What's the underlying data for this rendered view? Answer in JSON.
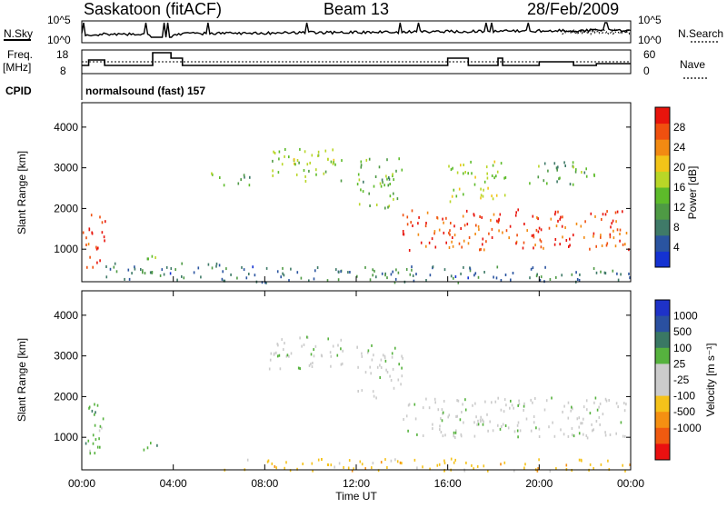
{
  "header": {
    "site": "Saskatoon (fitACF)",
    "beam": "Beam 13",
    "date": "28/Feb/2009"
  },
  "noise_panel": {
    "left_label": "N.Sky",
    "right_label": "N.Search",
    "y_top_label": "10^5",
    "y_bottom_label": "10^0",
    "right_top_label": "10^5",
    "right_bottom_label": "10^0"
  },
  "freq_panel": {
    "left_label_line1": "Freq.",
    "left_label_line2": "[MHz]",
    "left_top_tick": "18",
    "left_bottom_tick": "8",
    "right_label": "Nave",
    "right_top_tick": "60",
    "right_bottom_tick": "0"
  },
  "cpid_panel": {
    "label": "CPID",
    "value": "normalsound (fast) 157"
  },
  "colors": {
    "power_scale": [
      "#1432d2",
      "#2a54a0",
      "#3f7a68",
      "#4e9a44",
      "#5dbb2a",
      "#b9d627",
      "#f2c418",
      "#f28a12",
      "#f0500f",
      "#e8140c"
    ],
    "velocity_scale": [
      "#1e32c8",
      "#2a50a0",
      "#3a7864",
      "#56b23e",
      "#cccccc",
      "#cccccc",
      "#f5c21a",
      "#f59012",
      "#f05a10",
      "#ea1010"
    ],
    "ground_scatter": "#bbbbbb"
  },
  "chart_data": [
    {
      "type": "heatmap",
      "title": "",
      "xlabel": "",
      "ylabel": "Slant Range [km]",
      "x_range": [
        "00:00",
        "24:00"
      ],
      "ylim": [
        200,
        4600
      ],
      "yticks": [
        1000,
        2000,
        3000,
        4000
      ],
      "colorbar": {
        "label": "Power [dB]",
        "ticks": [
          4,
          8,
          12,
          16,
          20,
          24,
          28
        ],
        "range": [
          0,
          32
        ]
      },
      "scatter_regions": [
        {
          "t_start": 0.0,
          "t_end": 1.0,
          "r_min": 500,
          "r_max": 1900,
          "level": 28
        },
        {
          "t_start": 1.0,
          "t_end": 6.0,
          "r_min": 250,
          "r_max": 700,
          "level": 6
        },
        {
          "t_start": 2.8,
          "t_end": 3.4,
          "r_min": 700,
          "r_max": 1100,
          "level": 14
        },
        {
          "t_start": 5.5,
          "t_end": 7.5,
          "r_min": 2600,
          "r_max": 2900,
          "level": 10
        },
        {
          "t_start": 8.0,
          "t_end": 11.5,
          "r_min": 2700,
          "r_max": 3500,
          "level": 14
        },
        {
          "t_start": 12.0,
          "t_end": 14.0,
          "r_min": 2000,
          "r_max": 3300,
          "level": 12
        },
        {
          "t_start": 14.0,
          "t_end": 24.0,
          "r_min": 1000,
          "r_max": 2000,
          "level": 26
        },
        {
          "t_start": 16.0,
          "t_end": 18.5,
          "r_min": 2200,
          "r_max": 3200,
          "level": 16
        },
        {
          "t_start": 19.5,
          "t_end": 22.5,
          "r_min": 2600,
          "r_max": 3200,
          "level": 10
        },
        {
          "t_start": 6.0,
          "t_end": 24.0,
          "r_min": 200,
          "r_max": 600,
          "level": 6
        }
      ]
    },
    {
      "type": "heatmap",
      "title": "",
      "xlabel": "Time UT",
      "ylabel": "Slant Range [km]",
      "x_range": [
        "00:00",
        "24:00"
      ],
      "xticks": [
        "00:00",
        "04:00",
        "08:00",
        "12:00",
        "16:00",
        "20:00",
        "00:00"
      ],
      "ylim": [
        200,
        4600
      ],
      "yticks": [
        1000,
        2000,
        3000,
        4000
      ],
      "colorbar": {
        "label": "Velocity [m s⁻¹]",
        "ticks": [
          "1000",
          "500",
          "100",
          "25",
          "-25",
          "-100",
          "-500",
          "-1000"
        ]
      },
      "scatter_regions": [
        {
          "t_start": 0.0,
          "t_end": 1.0,
          "r_min": 500,
          "r_max": 1900,
          "velocity": 100
        },
        {
          "t_start": 2.5,
          "t_end": 3.3,
          "r_min": 700,
          "r_max": 1000,
          "velocity": 100
        },
        {
          "t_start": 8.0,
          "t_end": 11.5,
          "r_min": 2700,
          "r_max": 3500,
          "velocity": 0
        },
        {
          "t_start": 12.0,
          "t_end": 14.0,
          "r_min": 2000,
          "r_max": 3300,
          "velocity": 0
        },
        {
          "t_start": 14.0,
          "t_end": 24.0,
          "r_min": 1000,
          "r_max": 2000,
          "velocity": 0
        },
        {
          "t_start": 6.0,
          "t_end": 24.0,
          "r_min": 200,
          "r_max": 500,
          "velocity": -100
        }
      ]
    }
  ]
}
